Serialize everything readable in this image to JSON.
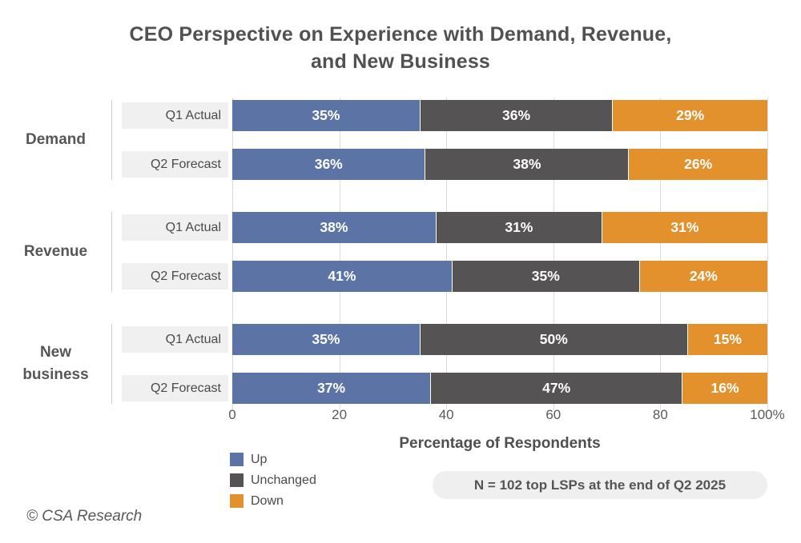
{
  "title": {
    "line1": "CEO Perspective on Experience with Demand, Revenue,",
    "line2": "and New Business"
  },
  "chart_data": {
    "type": "bar",
    "stacked": true,
    "orientation": "horizontal",
    "title": "CEO Perspective on Experience with Demand, Revenue, and New Business",
    "xlabel": "Percentage of Respondents",
    "xlim": [
      0,
      100
    ],
    "x_ticks": [
      "0",
      "20",
      "40",
      "60",
      "80",
      "100%"
    ],
    "grid": "vertical",
    "legend_position": "bottom-left",
    "legend": [
      {
        "name": "Up",
        "color": "#5b74a5"
      },
      {
        "name": "Unchanged",
        "color": "#555353"
      },
      {
        "name": "Down",
        "color": "#e2912d"
      }
    ],
    "groups": [
      {
        "label": "Demand",
        "rows": [
          {
            "label": "Q1 Actual",
            "values": [
              35,
              36,
              29
            ]
          },
          {
            "label": "Q2 Forecast",
            "values": [
              36,
              38,
              26
            ]
          }
        ]
      },
      {
        "label": "Revenue",
        "rows": [
          {
            "label": "Q1 Actual",
            "values": [
              38,
              31,
              31
            ]
          },
          {
            "label": "Q2 Forecast",
            "values": [
              41,
              35,
              24
            ]
          }
        ]
      },
      {
        "label": "New business",
        "rows": [
          {
            "label": "Q1 Actual",
            "values": [
              35,
              50,
              15
            ]
          },
          {
            "label": "Q2 Forecast",
            "values": [
              37,
              47,
              16
            ]
          }
        ]
      }
    ]
  },
  "note": "N = 102 top LSPs at the end of Q2 2025",
  "footer": "© CSA Research",
  "colors": {
    "up": "#5b74a5",
    "unchanged": "#555353",
    "down": "#e2912d",
    "label_box": "#f0f0f0",
    "gridline": "#dcdcdc",
    "text": "#515151",
    "note_bg": "#efefef"
  }
}
